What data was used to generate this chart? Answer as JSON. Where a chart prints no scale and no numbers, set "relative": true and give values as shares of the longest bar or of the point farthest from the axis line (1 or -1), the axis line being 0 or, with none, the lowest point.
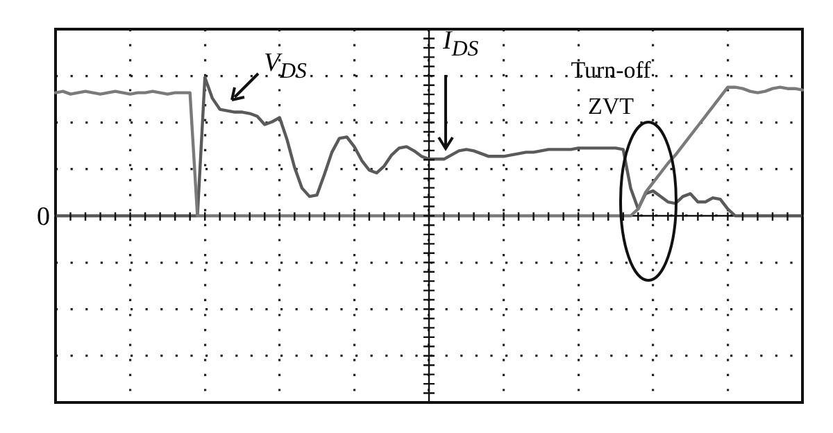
{
  "chart_data": {
    "type": "line",
    "relative": true,
    "grid": true,
    "legend": false,
    "marker": "none",
    "line_style": "solid",
    "categories": [
      null,
      null,
      null,
      null,
      null,
      null,
      null,
      null,
      null,
      null,
      null,
      null,
      null,
      null,
      null,
      null,
      null,
      null,
      null,
      null,
      null,
      null,
      null,
      null,
      null,
      null,
      null,
      null,
      null,
      null,
      null,
      null,
      null,
      null,
      null,
      null,
      null,
      null,
      null,
      null,
      null,
      null,
      null,
      null,
      null,
      null,
      null,
      null,
      null,
      null,
      null,
      null,
      null,
      null,
      null,
      null,
      null,
      null,
      null,
      null,
      null,
      null,
      null,
      null,
      null,
      null,
      null,
      null,
      null,
      null,
      null,
      null,
      null,
      null,
      null,
      null,
      null,
      null,
      null,
      null,
      null,
      null,
      null,
      null,
      null,
      null,
      null,
      null,
      null,
      null,
      null,
      null,
      null,
      null,
      null,
      null,
      null,
      null,
      null,
      null,
      null
    ],
    "series": [
      {
        "color": "#7a7a7a",
        "values": [
          0.89,
          0.9,
          0.88,
          0.89,
          0.9,
          0.89,
          0.88,
          0.89,
          0.9,
          0.89,
          0.88,
          0.89,
          0.89,
          0.9,
          0.89,
          0.88,
          0.89,
          0.89,
          0.89,
          0,
          0,
          0,
          0,
          0,
          0,
          0,
          0,
          0,
          0,
          0,
          0,
          0,
          0,
          0,
          0,
          0,
          0,
          0,
          0,
          0,
          0,
          0,
          0,
          0,
          0,
          0,
          0,
          0,
          0,
          0,
          0,
          0,
          0,
          0,
          0,
          0,
          0,
          0,
          0,
          0,
          0,
          0,
          0,
          0,
          0,
          0,
          0,
          0,
          0,
          0,
          0,
          0,
          0,
          0,
          0,
          0,
          0,
          0,
          0.05,
          0.17,
          0.24,
          0.31,
          0.38,
          0.44,
          0.51,
          0.58,
          0.65,
          0.72,
          0.79,
          0.86,
          0.93,
          0.93,
          0.92,
          0.9,
          0.89,
          0.9,
          0.92,
          0.93,
          0.92,
          0.92,
          0.91
        ]
      },
      {
        "color": "#5a5a5a",
        "values": [
          0,
          0,
          0,
          0,
          0,
          0,
          0,
          0,
          0,
          0,
          0,
          0,
          0,
          0,
          0,
          0,
          0,
          0,
          0,
          0,
          1.0,
          0.85,
          0.77,
          0.76,
          0.75,
          0.75,
          0.74,
          0.72,
          0.66,
          0.68,
          0.71,
          0.55,
          0.35,
          0.2,
          0.14,
          0.15,
          0.3,
          0.46,
          0.56,
          0.57,
          0.5,
          0.4,
          0.33,
          0.31,
          0.36,
          0.44,
          0.49,
          0.5,
          0.47,
          0.43,
          0.41,
          0.41,
          0.41,
          0.44,
          0.47,
          0.48,
          0.47,
          0.45,
          0.43,
          0.43,
          0.43,
          0.44,
          0.45,
          0.46,
          0.46,
          0.47,
          0.48,
          0.48,
          0.48,
          0.48,
          0.49,
          0.49,
          0.49,
          0.49,
          0.49,
          0.49,
          0.48,
          0.2,
          0.05,
          0.16,
          0.18,
          0.14,
          0.1,
          0.09,
          0.14,
          0.16,
          0.1,
          0.1,
          0.13,
          0.12,
          0.05,
          0,
          0,
          0,
          0,
          0,
          0,
          0,
          0,
          0,
          0
        ]
      }
    ],
    "annotations": [
      "0",
      "V$_{DS}$",
      "I$_{DS}$",
      "Turn-off ZVT"
    ]
  }
}
